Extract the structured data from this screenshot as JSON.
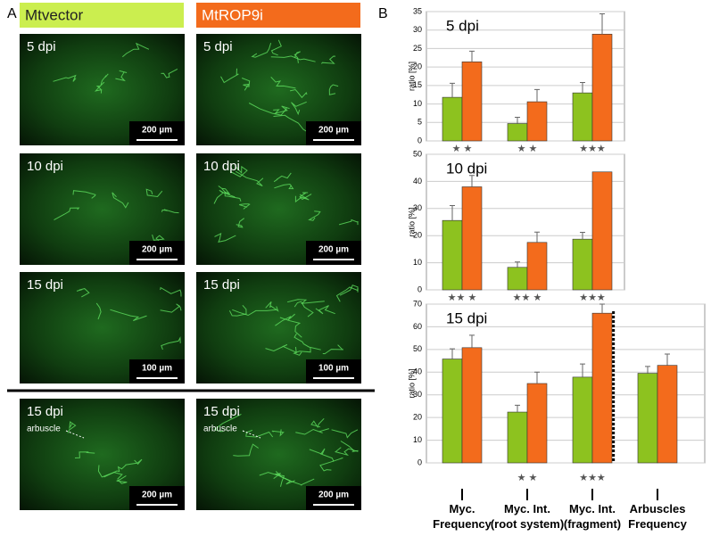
{
  "panel_a": {
    "label": "A",
    "columns": [
      "Mtvector",
      "MtROP9i"
    ],
    "rows": [
      {
        "time": "5 dpi",
        "scale": "200 µm"
      },
      {
        "time": "10 dpi",
        "scale": "200 µm"
      },
      {
        "time": "15 dpi",
        "scale": "100 µm"
      },
      {
        "time": "15 dpi",
        "scale": "200 µm",
        "annotation": "arbuscle"
      }
    ]
  },
  "panel_b": {
    "label": "B"
  },
  "chart_data": [
    {
      "type": "bar",
      "title": "5 dpi",
      "y_label": "ratio [%]",
      "categories": [
        null,
        null,
        null
      ],
      "series": [
        {
          "color": "#8dc21f",
          "values": [
            11.8,
            4.7,
            13
          ],
          "errors": [
            3.8,
            1.7,
            2.8
          ]
        },
        {
          "color": "#f36b1c",
          "values": [
            21.4,
            10.6,
            28.9
          ],
          "errors": [
            2.9,
            3.3,
            5.5
          ]
        }
      ],
      "significance": [
        "★ ★",
        "★ ★",
        "★★★"
      ],
      "ylim": [
        0,
        35
      ],
      "yticks": [
        0,
        5,
        10,
        15,
        20,
        25,
        30,
        35
      ],
      "grid": true
    },
    {
      "type": "bar",
      "title": "10 dpi",
      "y_label": "ratio [%]",
      "categories": [
        null,
        null,
        null
      ],
      "series": [
        {
          "color": "#8dc21f",
          "values": [
            25.6,
            8.3,
            18.7
          ],
          "errors": [
            5.5,
            2,
            2.5
          ]
        },
        {
          "color": "#f36b1c",
          "values": [
            38,
            17.5,
            43.5
          ],
          "errors": [
            4.2,
            3.8,
            null
          ]
        }
      ],
      "significance": [
        "★★ ★",
        "★★ ★",
        "★★★"
      ],
      "ylim": [
        0,
        50
      ],
      "yticks": [
        0,
        10,
        20,
        30,
        40,
        50
      ],
      "grid": true
    },
    {
      "type": "bar",
      "title": "15 dpi",
      "y_label": "ratio [%]",
      "categories": [
        "Myc.\nFrequency",
        "Myc. Int.\n(root system)",
        "Myc. Int.\n(fragment)",
        "Arbuscles\nFrequency"
      ],
      "series": [
        {
          "color": "#8dc21f",
          "values": [
            45.8,
            22.4,
            37.8,
            39.5
          ],
          "errors": [
            4.5,
            3,
            5.8,
            3
          ]
        },
        {
          "color": "#f36b1c",
          "values": [
            50.8,
            35,
            66,
            43
          ],
          "errors": [
            5.5,
            5,
            4,
            5
          ]
        }
      ],
      "significance": [
        null,
        "★ ★",
        "★★★",
        null
      ],
      "ylim": [
        0,
        70
      ],
      "yticks": [
        0,
        10,
        20,
        30,
        40,
        50,
        60,
        70
      ],
      "grid": true
    }
  ]
}
